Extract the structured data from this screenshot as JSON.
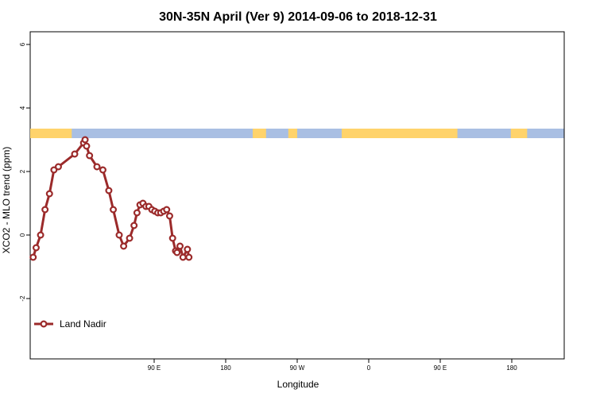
{
  "chart_data": {
    "type": "line",
    "title": "30N-35N April (Ver 9)   2014-09-06 to 2018-12-31",
    "xlabel": "Longitude",
    "ylabel": "XCO2 - MLO trend (ppm)",
    "xlim": [
      90,
      450
    ],
    "ylim": [
      -3.9,
      6.4
    ],
    "x_ticks": [
      {
        "value": 90,
        "label": "90 E"
      },
      {
        "value": 180,
        "label": "180"
      },
      {
        "value": 270,
        "label": "90 W"
      },
      {
        "value": 360,
        "label": "0"
      },
      {
        "value": 450,
        "label": "90 E"
      },
      {
        "value": 540,
        "label": "180"
      }
    ],
    "y_ticks": [
      {
        "value": -2,
        "label": "-2"
      },
      {
        "value": 0,
        "label": "0"
      },
      {
        "value": 2,
        "label": "2"
      },
      {
        "value": 4,
        "label": "4"
      },
      {
        "value": 6,
        "label": "6"
      }
    ],
    "grid": false,
    "legend_position": "bottom-left",
    "land_sea_band": {
      "y_range": [
        3.05,
        3.35
      ],
      "land_color": "#ffd36b",
      "ocean_color": "#a9bfe3",
      "land_segments": [
        [
          90,
          118
        ],
        [
          240,
          249
        ],
        [
          264,
          270
        ],
        [
          300,
          378
        ],
        [
          414,
          425
        ]
      ]
    },
    "series": [
      {
        "name": "Land Nadir",
        "color": "#9b2a2a",
        "x": [
          92,
          94,
          97,
          100,
          103,
          106,
          109,
          120,
          126,
          127,
          128,
          130,
          135,
          139,
          143,
          146,
          150,
          153,
          157,
          160,
          162,
          164,
          166,
          168,
          170,
          172,
          174,
          176,
          178,
          180,
          182,
          184,
          186,
          188,
          189,
          191,
          193,
          196,
          197
        ],
        "y": [
          -0.7,
          -0.4,
          0.0,
          0.8,
          1.3,
          2.05,
          2.15,
          2.55,
          2.9,
          3.0,
          2.8,
          2.5,
          2.15,
          2.05,
          1.4,
          0.8,
          0.0,
          -0.35,
          -0.1,
          0.3,
          0.7,
          0.95,
          1.0,
          0.9,
          0.9,
          0.8,
          0.75,
          0.7,
          0.7,
          0.75,
          0.8,
          0.6,
          -0.1,
          -0.5,
          -0.55,
          -0.35,
          -0.7,
          -0.45,
          -0.7
        ],
        "visible_segments": "estimated"
      }
    ]
  }
}
